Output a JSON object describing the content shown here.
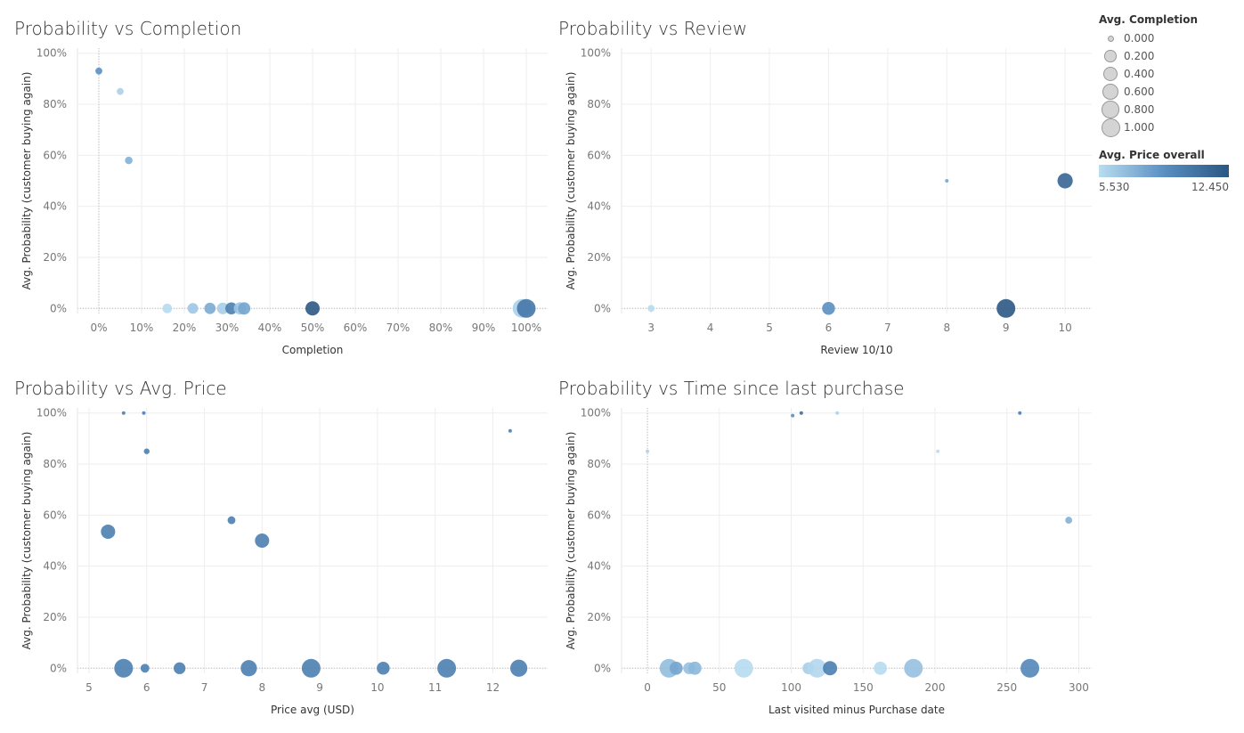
{
  "colors": {
    "grid": "#eeeeee",
    "axis_text": "#777777",
    "label_text": "#333333",
    "ramp_low": "#b9ddf1",
    "ramp_mid": "#5a8fc2",
    "ramp_high": "#2a5783"
  },
  "legend": {
    "size_title": "Avg. Completion",
    "size_items": [
      "0.000",
      "0.200",
      "0.400",
      "0.600",
      "0.800",
      "1.000"
    ],
    "size_values": [
      0,
      0.2,
      0.4,
      0.6,
      0.8,
      1.0
    ],
    "color_title": "Avg. Price overall",
    "color_min": "5.530",
    "color_max": "12.450",
    "color_min_value": 5.53,
    "color_max_value": 12.45
  },
  "chart_data": [
    {
      "type": "scatter",
      "title": "Probability vs Completion",
      "xlabel": "Completion",
      "ylabel": "Avg. Probability (customer buying again)",
      "x_ticks": [
        "0%",
        "10%",
        "20%",
        "30%",
        "40%",
        "50%",
        "60%",
        "70%",
        "80%",
        "90%",
        "100%"
      ],
      "x_tick_values": [
        0,
        10,
        20,
        30,
        40,
        50,
        60,
        70,
        80,
        90,
        100
      ],
      "y_ticks": [
        "0%",
        "20%",
        "40%",
        "60%",
        "80%",
        "100%"
      ],
      "y_tick_values": [
        0,
        20,
        40,
        60,
        80,
        100
      ],
      "xlim": [
        -5,
        105
      ],
      "ylim": [
        -2,
        102
      ],
      "zero_line_x": 0,
      "points": [
        {
          "x": 0,
          "y": 93,
          "size": 0.05,
          "color": 9.0
        },
        {
          "x": 5,
          "y": 85,
          "size": 0.05,
          "color": 6.0
        },
        {
          "x": 7,
          "y": 58,
          "size": 0.07,
          "color": 7.5
        },
        {
          "x": 16,
          "y": 0,
          "size": 0.16,
          "color": 5.6
        },
        {
          "x": 22,
          "y": 0,
          "size": 0.22,
          "color": 6.5
        },
        {
          "x": 26,
          "y": 0,
          "size": 0.26,
          "color": 7.8
        },
        {
          "x": 29,
          "y": 0,
          "size": 0.29,
          "color": 6.2
        },
        {
          "x": 31,
          "y": 0,
          "size": 0.31,
          "color": 10.0
        },
        {
          "x": 33,
          "y": 0,
          "size": 0.33,
          "color": 6.5
        },
        {
          "x": 34,
          "y": 0,
          "size": 0.34,
          "color": 8.0
        },
        {
          "x": 50,
          "y": 0,
          "size": 0.5,
          "color": 12.4
        },
        {
          "x": 99,
          "y": 0,
          "size": 0.99,
          "color": 6.0
        },
        {
          "x": 100,
          "y": 0,
          "size": 1.0,
          "color": 10.5
        }
      ]
    },
    {
      "type": "scatter",
      "title": "Probability vs Review",
      "xlabel": "Review 10/10",
      "ylabel": "Avg. Probability (customer buying again)",
      "x_ticks": [
        "3",
        "4",
        "5",
        "6",
        "7",
        "8",
        "9",
        "10"
      ],
      "x_tick_values": [
        3,
        4,
        5,
        6,
        7,
        8,
        9,
        10
      ],
      "y_ticks": [
        "0%",
        "20%",
        "40%",
        "60%",
        "80%",
        "100%"
      ],
      "y_tick_values": [
        0,
        20,
        40,
        60,
        80,
        100
      ],
      "xlim": [
        2.5,
        10.45
      ],
      "ylim": [
        -2,
        102
      ],
      "points": [
        {
          "x": 3,
          "y": 0,
          "size": 0.05,
          "color": 5.6
        },
        {
          "x": 6,
          "y": 0,
          "size": 0.38,
          "color": 9.0
        },
        {
          "x": 8,
          "y": 50,
          "size": 0.0,
          "color": 8.0
        },
        {
          "x": 9,
          "y": 0,
          "size": 1.0,
          "color": 12.4
        },
        {
          "x": 10,
          "y": 50,
          "size": 0.6,
          "color": 11.5
        }
      ]
    },
    {
      "type": "scatter",
      "title": "Probability vs Avg. Price",
      "xlabel": "Price avg (USD)",
      "ylabel": "Avg. Probability (customer buying again)",
      "x_ticks": [
        "5",
        "6",
        "7",
        "8",
        "9",
        "10",
        "11",
        "12"
      ],
      "x_tick_values": [
        5,
        6,
        7,
        8,
        9,
        10,
        11,
        12
      ],
      "y_ticks": [
        "0%",
        "20%",
        "40%",
        "60%",
        "80%",
        "100%"
      ],
      "y_tick_values": [
        0,
        20,
        40,
        60,
        80,
        100
      ],
      "xlim": [
        4.8,
        12.95
      ],
      "ylim": [
        -2,
        102
      ],
      "points": [
        {
          "x": 5.6,
          "y": 100,
          "size": 0.0,
          "color": 10.0
        },
        {
          "x": 5.95,
          "y": 100,
          "size": 0.0,
          "color": 10.0
        },
        {
          "x": 6.0,
          "y": 85,
          "size": 0.02,
          "color": 10.0
        },
        {
          "x": 12.3,
          "y": 93,
          "size": 0.0,
          "color": 10.0
        },
        {
          "x": 5.33,
          "y": 53.5,
          "size": 0.5,
          "color": 10.0
        },
        {
          "x": 7.47,
          "y": 58,
          "size": 0.08,
          "color": 10.0
        },
        {
          "x": 8.0,
          "y": 50,
          "size": 0.5,
          "color": 10.0
        },
        {
          "x": 5.6,
          "y": 0,
          "size": 1.0,
          "color": 10.0
        },
        {
          "x": 5.97,
          "y": 0,
          "size": 0.12,
          "color": 10.0
        },
        {
          "x": 6.57,
          "y": 0,
          "size": 0.3,
          "color": 10.0
        },
        {
          "x": 7.77,
          "y": 0,
          "size": 0.7,
          "color": 10.0
        },
        {
          "x": 8.85,
          "y": 0,
          "size": 1.0,
          "color": 10.0
        },
        {
          "x": 10.1,
          "y": 0,
          "size": 0.38,
          "color": 10.0
        },
        {
          "x": 11.2,
          "y": 0,
          "size": 1.0,
          "color": 10.0
        },
        {
          "x": 12.45,
          "y": 0,
          "size": 0.8,
          "color": 10.0
        }
      ]
    },
    {
      "type": "scatter",
      "title": "Probability vs Time since last purchase",
      "xlabel": "Last visited minus Purchase date",
      "ylabel": "Avg. Probability (customer buying again)",
      "x_ticks": [
        "0",
        "50",
        "100",
        "150",
        "200",
        "250",
        "300"
      ],
      "x_tick_values": [
        0,
        50,
        100,
        150,
        200,
        250,
        300
      ],
      "y_ticks": [
        "0%",
        "20%",
        "40%",
        "60%",
        "80%",
        "100%"
      ],
      "y_tick_values": [
        0,
        20,
        40,
        60,
        80,
        100
      ],
      "xlim": [
        -18,
        309
      ],
      "ylim": [
        -2,
        102
      ],
      "zero_line_x": 0,
      "points": [
        {
          "x": 0,
          "y": 85,
          "size": 0.0,
          "color": 6.0
        },
        {
          "x": 101,
          "y": 99,
          "size": 0.0,
          "color": 9.0
        },
        {
          "x": 107,
          "y": 100,
          "size": 0.0,
          "color": 11.0
        },
        {
          "x": 132,
          "y": 100,
          "size": 0.0,
          "color": 6.0
        },
        {
          "x": 259,
          "y": 100,
          "size": 0.0,
          "color": 10.0
        },
        {
          "x": 202,
          "y": 85,
          "size": 0.0,
          "color": 5.6
        },
        {
          "x": 293,
          "y": 58,
          "size": 0.05,
          "color": 7.5
        },
        {
          "x": 15,
          "y": 0,
          "size": 1.0,
          "color": 7.0
        },
        {
          "x": 20,
          "y": 0,
          "size": 0.4,
          "color": 8.0
        },
        {
          "x": 29,
          "y": 0,
          "size": 0.3,
          "color": 6.8
        },
        {
          "x": 33,
          "y": 0,
          "size": 0.4,
          "color": 7.2
        },
        {
          "x": 67,
          "y": 0,
          "size": 1.0,
          "color": 5.6
        },
        {
          "x": 112,
          "y": 0,
          "size": 0.3,
          "color": 6.2
        },
        {
          "x": 118,
          "y": 0,
          "size": 1.0,
          "color": 5.8
        },
        {
          "x": 127,
          "y": 0,
          "size": 0.5,
          "color": 10.0
        },
        {
          "x": 162,
          "y": 0,
          "size": 0.4,
          "color": 5.6
        },
        {
          "x": 185,
          "y": 0,
          "size": 1.0,
          "color": 6.8
        },
        {
          "x": 266,
          "y": 0,
          "size": 1.0,
          "color": 9.5
        }
      ]
    }
  ]
}
